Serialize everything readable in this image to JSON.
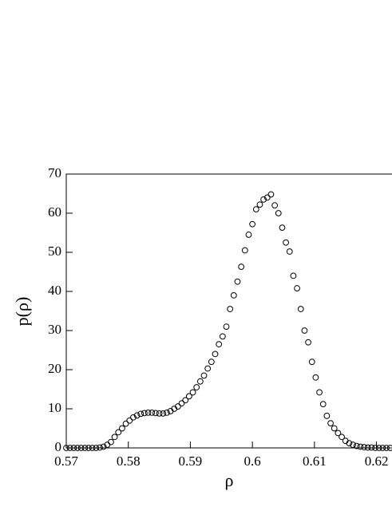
{
  "chart_data": {
    "type": "scatter",
    "xlabel": "ρ",
    "ylabel": "p(ρ)",
    "xlim": [
      0.57,
      0.6225
    ],
    "ylim": [
      0,
      70
    ],
    "xticks": [
      0.57,
      0.58,
      0.59,
      0.6,
      0.61,
      0.62
    ],
    "yticks": [
      0,
      10,
      20,
      30,
      40,
      50,
      60,
      70
    ],
    "series": [
      {
        "color": "#000000",
        "x": [
          0.57,
          0.5706,
          0.5712,
          0.5718,
          0.5724,
          0.573,
          0.5736,
          0.5742,
          0.5748,
          0.5754,
          0.576,
          0.5766,
          0.5772,
          0.5778,
          0.5784,
          0.579,
          0.5796,
          0.5802,
          0.5808,
          0.5814,
          0.582,
          0.5826,
          0.5832,
          0.5838,
          0.5844,
          0.585,
          0.5856,
          0.5862,
          0.5868,
          0.5874,
          0.588,
          0.5886,
          0.5892,
          0.5898,
          0.5904,
          0.591,
          0.5916,
          0.5922,
          0.5928,
          0.5934,
          0.594,
          0.5946,
          0.5952,
          0.5958,
          0.5964,
          0.597,
          0.5976,
          0.5982,
          0.5988,
          0.5994,
          0.6,
          0.6006,
          0.6012,
          0.6018,
          0.6024,
          0.603,
          0.6036,
          0.6042,
          0.6048,
          0.6054,
          0.606,
          0.6066,
          0.6072,
          0.6078,
          0.6084,
          0.609,
          0.6096,
          0.6102,
          0.6108,
          0.6114,
          0.612,
          0.6126,
          0.6132,
          0.6138,
          0.6144,
          0.615,
          0.6156,
          0.6162,
          0.6168,
          0.6174,
          0.618,
          0.6186,
          0.6192,
          0.6198,
          0.6204,
          0.621,
          0.6216,
          0.6222
        ],
        "values": [
          0,
          0,
          0,
          0,
          0,
          0,
          0,
          0,
          0,
          0.1,
          0.3,
          0.8,
          1.5,
          2.8,
          4,
          5,
          6.2,
          7,
          7.8,
          8.3,
          8.7,
          8.9,
          9,
          9,
          8.9,
          8.8,
          8.8,
          9,
          9.4,
          10,
          10.6,
          11.4,
          12.2,
          13.2,
          14.2,
          15.5,
          17,
          18.5,
          20.3,
          22,
          24,
          26.5,
          28.5,
          31,
          35.5,
          39,
          42.5,
          46.3,
          50.5,
          54.5,
          57.2,
          61,
          62.2,
          63.5,
          64,
          64.8,
          62,
          60,
          56.3,
          52.5,
          50.2,
          44,
          40.8,
          35.5,
          30,
          27,
          22,
          18,
          14.2,
          11.2,
          8.2,
          6.3,
          5,
          3.8,
          2.8,
          1.8,
          1.2,
          0.8,
          0.5,
          0.3,
          0.2,
          0.1,
          0.1,
          0,
          0,
          0,
          0,
          0
        ]
      }
    ]
  }
}
